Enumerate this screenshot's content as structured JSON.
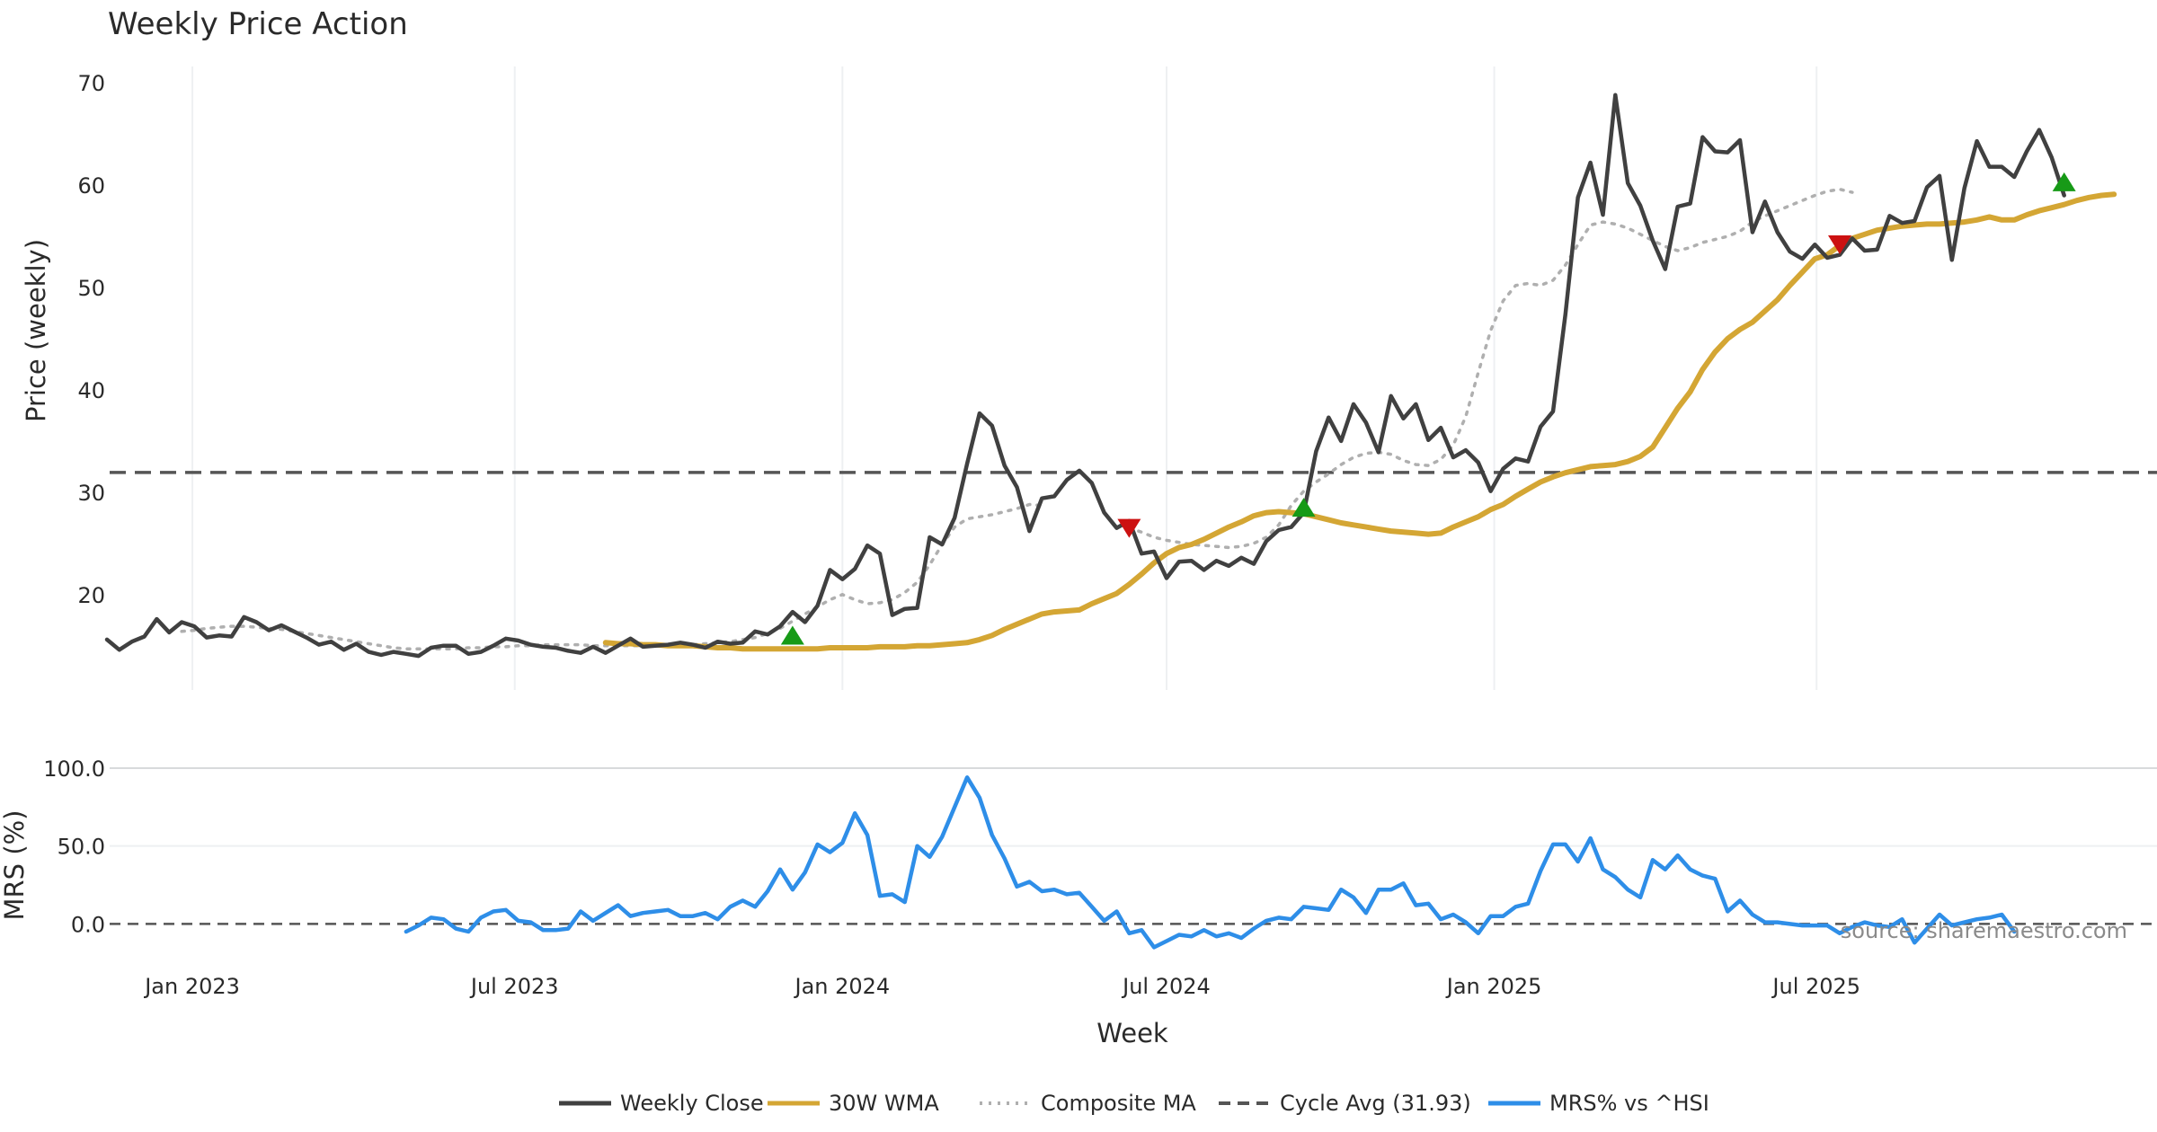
{
  "chart_data": {
    "type": "line",
    "title": "Weekly Price Action",
    "xlabel": "Week",
    "source_text": "source: sharemaestro.com",
    "x_ticks": [
      {
        "label": "Jan 2023",
        "date": "2023-01-01"
      },
      {
        "label": "Jul 2023",
        "date": "2023-07-01"
      },
      {
        "label": "Jan 2024",
        "date": "2024-01-01"
      },
      {
        "label": "Jul 2024",
        "date": "2024-07-01"
      },
      {
        "label": "Jan 2025",
        "date": "2025-01-01"
      },
      {
        "label": "Jul 2025",
        "date": "2025-07-01"
      }
    ],
    "start_date": "2022-11-14",
    "x_range": [
      "2022-11-12",
      "2025-12-24"
    ],
    "price_panel": {
      "ylabel": "Price (weekly)",
      "ylim": [
        10.5,
        73
      ],
      "y_ticks": [
        20,
        30,
        40,
        50,
        60,
        70
      ],
      "cycle_avg": 31.93,
      "weekly_close": [
        15.6,
        14.6,
        15.4,
        15.9,
        17.6,
        16.3,
        17.3,
        16.9,
        15.8,
        16.0,
        15.9,
        17.8,
        17.3,
        16.5,
        17.0,
        16.4,
        15.8,
        15.1,
        15.4,
        14.6,
        15.2,
        14.4,
        14.1,
        14.4,
        14.2,
        14.0,
        14.8,
        15.0,
        15.0,
        14.2,
        14.4,
        15.0,
        15.7,
        15.5,
        15.1,
        14.9,
        14.8,
        14.5,
        14.3,
        14.9,
        14.3,
        15.0,
        15.7,
        14.9,
        15.0,
        15.1,
        15.3,
        15.1,
        14.8,
        15.4,
        15.2,
        15.3,
        16.4,
        16.1,
        16.9,
        18.3,
        17.3,
        18.9,
        22.4,
        21.5,
        22.5,
        24.8,
        24.0,
        18.0,
        18.6,
        18.7,
        25.6,
        24.9,
        27.5,
        32.8,
        37.7,
        36.5,
        32.6,
        30.5,
        26.2,
        29.4,
        29.6,
        31.2,
        32.1,
        30.9,
        28.0,
        26.5,
        27.2,
        24.0,
        24.2,
        21.6,
        23.2,
        23.3,
        22.4,
        23.3,
        22.8,
        23.6,
        23.0,
        25.2,
        26.3,
        26.6,
        28.0,
        34.0,
        37.3,
        35.0,
        38.6,
        36.8,
        33.9,
        39.4,
        37.2,
        38.6,
        35.1,
        36.3,
        33.4,
        34.1,
        32.9,
        30.1,
        32.3,
        33.3,
        33.0,
        36.4,
        37.9,
        47.4,
        58.8,
        62.2,
        57.1,
        68.8,
        60.2,
        58.0,
        54.6,
        51.8,
        57.9,
        58.2,
        64.7,
        63.3,
        63.2,
        64.4,
        55.4,
        58.4,
        55.4,
        53.5,
        52.8,
        54.2,
        52.9,
        53.2,
        54.8,
        53.6,
        53.7,
        57.0,
        56.3,
        56.5,
        59.8,
        60.9,
        52.7,
        59.7,
        64.3,
        61.8,
        61.8,
        60.8,
        63.3,
        65.4,
        62.7,
        59.0
      ],
      "wma_30": [
        {
          "start_index": 40,
          "values": [
            15.3,
            15.2,
            15.2,
            15.1,
            15.1,
            15.0,
            15.0,
            15.0,
            14.9,
            14.8,
            14.8,
            14.7,
            14.7,
            14.7,
            14.7,
            14.7,
            14.7,
            14.7,
            14.8,
            14.8,
            14.8,
            14.8,
            14.9,
            14.9,
            14.9,
            15.0,
            15.0,
            15.1,
            15.2,
            15.3,
            15.6,
            16.0,
            16.6,
            17.1,
            17.6,
            18.1,
            18.3,
            18.4,
            18.5,
            19.1,
            19.6,
            20.1,
            21.0,
            22.0,
            23.1,
            24.0,
            24.6,
            24.9,
            25.4,
            26.0,
            26.6,
            27.1,
            27.7,
            28.0,
            28.1,
            28.0,
            27.9,
            27.6,
            27.3,
            27.0,
            26.8,
            26.6,
            26.4,
            26.2,
            26.1,
            26.0,
            25.9,
            26.0,
            26.6,
            27.1,
            27.6,
            28.3,
            28.8,
            29.6,
            30.3,
            31.0,
            31.5,
            31.9,
            32.2,
            32.5,
            32.6,
            32.7,
            33.0,
            33.5,
            34.4,
            36.3,
            38.2,
            39.8,
            42.0,
            43.7,
            45.0,
            45.9,
            46.6,
            47.7,
            48.8,
            50.2,
            51.5,
            52.8,
            53.2,
            54.1,
            54.8,
            55.2,
            55.6,
            55.8,
            56.0,
            56.1,
            56.2,
            56.2,
            56.3,
            56.4,
            56.6,
            56.9,
            56.6,
            56.6,
            57.1,
            57.5,
            57.8,
            58.1,
            58.5,
            58.8,
            59.0,
            59.1
          ]
        }
      ],
      "composite_ma": [
        {
          "start_index": 6,
          "values": [
            16.4,
            16.5,
            16.7,
            16.8,
            16.9,
            16.9,
            16.8,
            16.7,
            16.6,
            16.4,
            16.2,
            16.0,
            15.8,
            15.6,
            15.4,
            15.2,
            15.0,
            14.8,
            14.7,
            14.7,
            14.7,
            14.7,
            14.7,
            14.8,
            14.8,
            14.9,
            14.9,
            15.0,
            15.0,
            15.1,
            15.1,
            15.1,
            15.1,
            15.0,
            15.0,
            15.0,
            15.0,
            15.0,
            15.0,
            15.1,
            15.1,
            15.1,
            15.2,
            15.3,
            15.4,
            15.6,
            15.8,
            16.2,
            16.7,
            17.4,
            18.1,
            18.8,
            19.5,
            20.0,
            19.5,
            19.1,
            19.2,
            19.5,
            20.2,
            21.2,
            22.9,
            24.9,
            26.6,
            27.4,
            27.6,
            27.8,
            28.1,
            28.4,
            28.8,
            28.7
          ]
        },
        {
          "start_index": 82,
          "values": [
            26.5,
            26.1,
            25.6,
            25.3,
            25.1,
            24.9,
            24.8,
            24.7,
            24.6,
            24.7,
            25.0,
            25.6,
            26.8,
            28.7,
            30.1,
            31.0,
            31.8,
            32.7,
            33.4,
            33.8,
            33.9,
            33.7,
            33.1,
            32.7,
            32.6,
            33.2,
            34.6,
            37.4,
            41.7,
            45.8,
            48.7,
            50.2,
            50.4,
            50.2,
            50.7,
            52.2,
            54.2,
            56.1,
            56.4,
            56.2,
            55.8,
            55.2,
            54.6,
            54.0,
            53.6,
            53.9,
            54.4,
            54.7,
            55.0,
            55.5,
            56.4,
            57.0,
            57.5,
            58.0,
            58.5,
            59.0,
            59.4,
            59.6,
            59.3
          ]
        }
      ],
      "signals": [
        {
          "type": "buy",
          "index": 55,
          "price": 15.9
        },
        {
          "type": "sell",
          "index": 82,
          "price": 26.6
        },
        {
          "type": "buy",
          "index": 96,
          "price": 28.4
        },
        {
          "type": "sell",
          "index": 139,
          "price": 54.3
        },
        {
          "type": "buy",
          "index": 157,
          "price": 60.2
        }
      ]
    },
    "mrs_panel": {
      "ylabel": "MRS (%)",
      "ylim": [
        -24,
        104
      ],
      "y_ticks": [
        0.0,
        50.0,
        100.0
      ],
      "y_tick_labels": [
        "0.0",
        "50.0",
        "100.0"
      ],
      "start_index": 24,
      "values": [
        -5,
        -1,
        4,
        3,
        -3,
        -5,
        4,
        8,
        9,
        2,
        1,
        -4,
        -4,
        -3,
        8,
        2,
        7,
        12,
        5,
        7,
        8,
        9,
        5,
        5,
        7,
        3,
        11,
        15,
        11,
        21,
        35,
        22,
        33,
        51,
        46,
        52,
        71,
        57,
        18,
        19,
        14,
        50,
        43,
        56,
        75,
        94,
        81,
        57,
        42,
        24,
        27,
        21,
        22,
        19,
        20,
        11,
        2,
        8,
        -6,
        -4,
        -15,
        -11,
        -7,
        -8,
        -4,
        -8,
        -6,
        -9,
        -3,
        2,
        4,
        3,
        11,
        10,
        9,
        22,
        17,
        7,
        22,
        22,
        26,
        12,
        13,
        3,
        6,
        1,
        -6,
        5,
        5,
        11,
        13,
        34,
        51,
        51,
        40,
        55,
        35,
        30,
        22,
        17,
        41,
        35,
        44,
        35,
        31,
        29,
        8,
        15,
        6,
        1,
        1,
        0,
        -1,
        -1,
        -1,
        -6,
        -2,
        1,
        -1,
        -2,
        3,
        -12,
        -3,
        6,
        -1,
        1,
        3,
        4,
        6,
        -5
      ],
      "zero_line": 0
    },
    "legend": [
      {
        "label": "Weekly Close",
        "color": "#404040",
        "style": "solid"
      },
      {
        "label": "30W WMA",
        "color": "#D4A634",
        "style": "solid"
      },
      {
        "label": "Composite MA",
        "color": "#AFAFAF",
        "style": "dotted"
      },
      {
        "label": "Cycle Avg (31.93)",
        "color": "#555555",
        "style": "dashed"
      },
      {
        "label": "MRS% vs ^HSI",
        "color": "#2E8EE8",
        "style": "solid"
      }
    ],
    "colors": {
      "close": "#404040",
      "wma": "#D4A634",
      "composite": "#AFAFAF",
      "cycle": "#555555",
      "mrs": "#2E8EE8",
      "buy": "#179A17",
      "sell": "#CC1111",
      "grid": "#EEF0F2"
    }
  }
}
